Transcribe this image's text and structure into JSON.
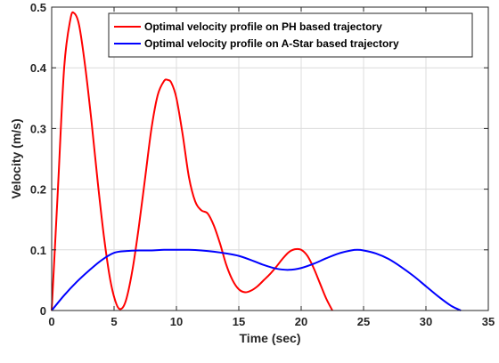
{
  "chart_data": {
    "type": "line",
    "title": "",
    "xlabel": "Time (sec)",
    "ylabel": "Velocity (m/s)",
    "xlim": [
      0,
      35
    ],
    "ylim": [
      0,
      0.5
    ],
    "xticks": [
      0,
      5,
      10,
      15,
      20,
      25,
      30,
      35
    ],
    "yticks": [
      0,
      0.1,
      0.2,
      0.3,
      0.4,
      0.5
    ],
    "ytick_labels": [
      "0",
      "0.1",
      "0.2",
      "0.3",
      "0.4",
      "0.5"
    ],
    "grid": true,
    "legend_position": "top-right",
    "series": [
      {
        "name": "Optimal velocity profile on PH based trajectory",
        "color": "#ff0000",
        "x": [
          0,
          0.5,
          1.0,
          1.5,
          1.8,
          2.2,
          2.7,
          3.2,
          3.7,
          4.2,
          4.7,
          5.2,
          5.6,
          6.0,
          6.5,
          7.0,
          7.5,
          8.0,
          8.5,
          9.0,
          9.3,
          9.6,
          10.0,
          10.5,
          11.0,
          11.5,
          12.0,
          12.5,
          13.0,
          13.5,
          14.0,
          14.5,
          15.0,
          15.5,
          16.0,
          16.5,
          17.0,
          17.5,
          18.0,
          18.5,
          19.0,
          19.5,
          20.0,
          20.5,
          21.0,
          21.5,
          22.0,
          22.5
        ],
        "y": [
          0,
          0.2,
          0.4,
          0.48,
          0.49,
          0.47,
          0.4,
          0.31,
          0.21,
          0.12,
          0.05,
          0.01,
          0.003,
          0.02,
          0.07,
          0.14,
          0.22,
          0.3,
          0.355,
          0.378,
          0.38,
          0.375,
          0.35,
          0.29,
          0.22,
          0.18,
          0.165,
          0.16,
          0.14,
          0.11,
          0.075,
          0.05,
          0.035,
          0.03,
          0.033,
          0.04,
          0.05,
          0.06,
          0.072,
          0.085,
          0.096,
          0.101,
          0.1,
          0.09,
          0.07,
          0.045,
          0.02,
          0
        ]
      },
      {
        "name": "Optimal velocity profile on A-Star based trajectory",
        "color": "#0000ff",
        "x": [
          0,
          1,
          2,
          3,
          4,
          5,
          6,
          7,
          8,
          9,
          10,
          11,
          12,
          13,
          14,
          15,
          16,
          17,
          18,
          19,
          20,
          21,
          22,
          23,
          24,
          24.5,
          25,
          26,
          27,
          28,
          29,
          30,
          31,
          32,
          32.8
        ],
        "y": [
          0,
          0.025,
          0.047,
          0.066,
          0.083,
          0.095,
          0.098,
          0.099,
          0.099,
          0.1,
          0.1,
          0.1,
          0.099,
          0.097,
          0.094,
          0.09,
          0.083,
          0.075,
          0.069,
          0.067,
          0.07,
          0.077,
          0.086,
          0.094,
          0.099,
          0.1,
          0.099,
          0.094,
          0.085,
          0.072,
          0.057,
          0.04,
          0.023,
          0.008,
          0
        ]
      }
    ]
  }
}
